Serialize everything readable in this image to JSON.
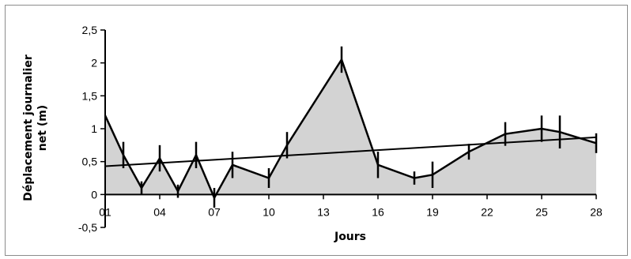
{
  "chart_data": {
    "type": "area",
    "xlabel": "Jours",
    "ylabel_lines": [
      "Déplacement journalier",
      "net (m)"
    ],
    "x_tick_labels": [
      "01",
      "04",
      "07",
      "10",
      "13",
      "16",
      "19",
      "22",
      "25",
      "28"
    ],
    "x_tick_values": [
      1,
      4,
      7,
      10,
      13,
      16,
      19,
      22,
      25,
      28
    ],
    "y_tick_labels": [
      "-0,5",
      "0",
      "0,5",
      "1",
      "1,5",
      "2",
      "2,5"
    ],
    "y_tick_values": [
      -0.5,
      0,
      0.5,
      1,
      1.5,
      2,
      2.5
    ],
    "xlim": [
      1,
      28
    ],
    "ylim": [
      -0.5,
      2.5
    ],
    "grid": false,
    "series": [
      {
        "x": [
          1,
          2,
          3,
          4,
          5,
          6,
          7,
          8,
          10,
          11,
          14,
          16,
          18,
          19,
          21,
          23,
          25,
          26,
          28
        ],
        "y": [
          1.2,
          0.6,
          0.1,
          0.55,
          0.05,
          0.6,
          -0.05,
          0.45,
          0.25,
          0.75,
          2.05,
          0.45,
          0.25,
          0.3,
          0.65,
          0.92,
          1.0,
          0.95,
          0.78
        ],
        "error": [
          0,
          0.2,
          0.1,
          0.2,
          0.1,
          0.2,
          0.15,
          0.2,
          0.15,
          0.2,
          0.2,
          0.2,
          0.1,
          0.2,
          0.12,
          0.18,
          0.2,
          0.25,
          0.15
        ],
        "fill_color": "#d3d3d3",
        "line_color": "#000000"
      }
    ],
    "trendline": {
      "x": [
        1,
        28
      ],
      "y": [
        0.43,
        0.87
      ],
      "color": "#000000"
    }
  }
}
